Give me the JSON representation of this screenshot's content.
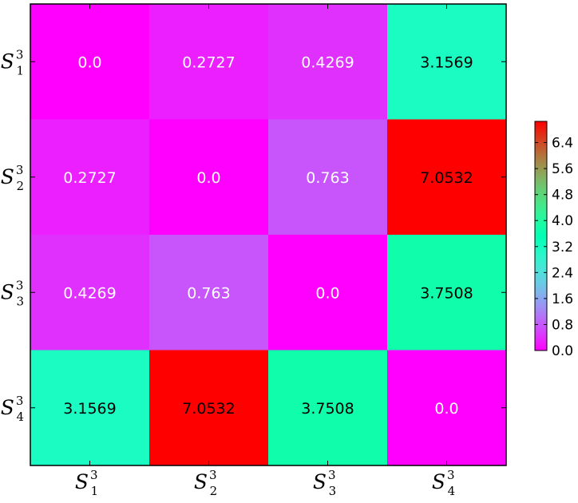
{
  "chart_data": {
    "type": "heatmap",
    "title": "",
    "xlabel": "",
    "ylabel": "",
    "x_labels": [
      {
        "base": "S",
        "sub": "1",
        "sup": "3"
      },
      {
        "base": "S",
        "sub": "2",
        "sup": "3"
      },
      {
        "base": "S",
        "sub": "3",
        "sup": "3"
      },
      {
        "base": "S",
        "sub": "4",
        "sup": "3"
      }
    ],
    "y_labels": [
      {
        "base": "S",
        "sub": "1",
        "sup": "3"
      },
      {
        "base": "S",
        "sub": "2",
        "sup": "3"
      },
      {
        "base": "S",
        "sub": "3",
        "sup": "3"
      },
      {
        "base": "S",
        "sub": "4",
        "sup": "3"
      }
    ],
    "values": [
      [
        0.0,
        0.2727,
        0.4269,
        3.1569
      ],
      [
        0.2727,
        0.0,
        0.763,
        7.0532
      ],
      [
        0.4269,
        0.763,
        0.0,
        3.7508
      ],
      [
        3.1569,
        7.0532,
        3.7508,
        0.0
      ]
    ],
    "cell_labels": [
      [
        "0.0",
        "0.2727",
        "0.4269",
        "3.1569"
      ],
      [
        "0.2727",
        "0.0",
        "0.763",
        "7.0532"
      ],
      [
        "0.4269",
        "0.763",
        "0.0",
        "3.7508"
      ],
      [
        "3.1569",
        "7.0532",
        "3.7508",
        "0.0"
      ]
    ],
    "colormap": "rainbow",
    "colorbar": {
      "range": [
        0.0,
        7.0532
      ],
      "ticks": [
        0.0,
        0.8,
        1.6,
        2.4,
        3.2,
        4.0,
        4.8,
        5.6,
        6.4
      ],
      "tick_labels": [
        "0.0",
        "0.8",
        "1.6",
        "2.4",
        "3.2",
        "4.0",
        "4.8",
        "5.6",
        "6.4"
      ],
      "placement": "right"
    },
    "grid": false
  }
}
